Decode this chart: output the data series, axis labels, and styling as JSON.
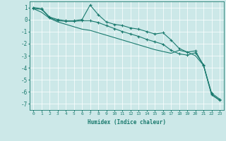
{
  "xlabel": "Humidex (Indice chaleur)",
  "background_color": "#cce8e8",
  "grid_color": "#ffffff",
  "line_color": "#1a7a6e",
  "xlim": [
    -0.5,
    23.5
  ],
  "ylim": [
    -7.5,
    1.5
  ],
  "xticks": [
    0,
    1,
    2,
    3,
    4,
    5,
    6,
    7,
    8,
    9,
    10,
    11,
    12,
    13,
    14,
    15,
    16,
    17,
    18,
    19,
    20,
    21,
    22,
    23
  ],
  "yticks": [
    -7,
    -6,
    -5,
    -4,
    -3,
    -2,
    -1,
    0,
    1
  ],
  "series1": [
    [
      0,
      1.0
    ],
    [
      1,
      0.9
    ],
    [
      2,
      0.2
    ],
    [
      3,
      0.0
    ],
    [
      4,
      -0.1
    ],
    [
      5,
      -0.1
    ],
    [
      6,
      0.0
    ],
    [
      7,
      1.2
    ],
    [
      8,
      0.4
    ],
    [
      9,
      -0.2
    ],
    [
      10,
      -0.4
    ],
    [
      11,
      -0.5
    ],
    [
      12,
      -0.7
    ],
    [
      13,
      -0.8
    ],
    [
      14,
      -1.0
    ],
    [
      15,
      -1.2
    ],
    [
      16,
      -1.1
    ],
    [
      17,
      -1.7
    ],
    [
      18,
      -2.4
    ],
    [
      19,
      -2.7
    ],
    [
      20,
      -2.6
    ],
    [
      21,
      -3.8
    ],
    [
      22,
      -6.1
    ],
    [
      23,
      -6.6
    ]
  ],
  "series2": [
    [
      0,
      0.9
    ],
    [
      1,
      0.85
    ],
    [
      2,
      0.15
    ],
    [
      3,
      -0.1
    ],
    [
      4,
      -0.15
    ],
    [
      5,
      -0.15
    ],
    [
      6,
      -0.1
    ],
    [
      7,
      -0.1
    ],
    [
      8,
      -0.25
    ],
    [
      9,
      -0.5
    ],
    [
      10,
      -0.75
    ],
    [
      11,
      -1.0
    ],
    [
      12,
      -1.2
    ],
    [
      13,
      -1.4
    ],
    [
      14,
      -1.65
    ],
    [
      15,
      -1.85
    ],
    [
      16,
      -2.05
    ],
    [
      17,
      -2.55
    ],
    [
      18,
      -2.85
    ],
    [
      19,
      -2.95
    ],
    [
      20,
      -2.75
    ],
    [
      21,
      -3.75
    ],
    [
      22,
      -6.2
    ],
    [
      23,
      -6.7
    ]
  ],
  "series3": [
    [
      0,
      0.9
    ],
    [
      1,
      0.6
    ],
    [
      2,
      0.1
    ],
    [
      3,
      -0.2
    ],
    [
      4,
      -0.4
    ],
    [
      5,
      -0.6
    ],
    [
      6,
      -0.8
    ],
    [
      7,
      -0.9
    ],
    [
      8,
      -1.1
    ],
    [
      9,
      -1.3
    ],
    [
      10,
      -1.5
    ],
    [
      11,
      -1.7
    ],
    [
      12,
      -1.9
    ],
    [
      13,
      -2.1
    ],
    [
      14,
      -2.3
    ],
    [
      15,
      -2.5
    ],
    [
      16,
      -2.65
    ],
    [
      17,
      -2.8
    ],
    [
      18,
      -2.55
    ],
    [
      19,
      -2.7
    ],
    [
      20,
      -3.0
    ],
    [
      21,
      -3.8
    ],
    [
      22,
      -6.25
    ],
    [
      23,
      -6.7
    ]
  ]
}
